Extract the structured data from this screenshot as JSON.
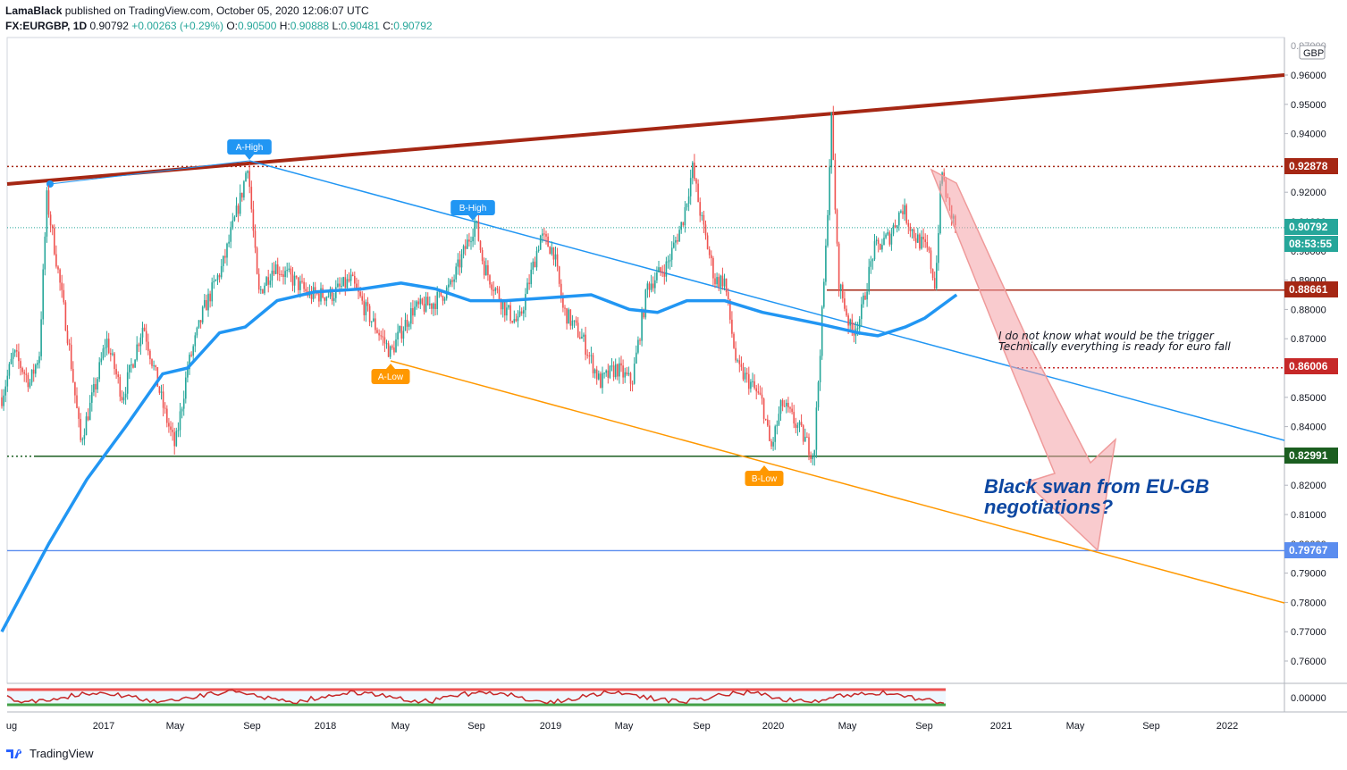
{
  "header": {
    "author": "LamaBlack",
    "published": "published on TradingView.com, October 05, 2020 12:06:07 UTC",
    "symbol": "FX:EURGBP, 1D",
    "last": "0.90792",
    "change": "+0.00263 (+0.29%)",
    "o_label": "O:",
    "o": "0.90500",
    "h_label": "H:",
    "h": "0.90888",
    "l_label": "L:",
    "l": "0.90481",
    "c_label": "C:",
    "c": "0.90792"
  },
  "brand": "TradingView",
  "colors": {
    "up": "#26a69a",
    "down": "#ef5350",
    "ma": "#2196f3",
    "resistance": "#a52714",
    "falling_line": "#2196f3",
    "lower_line": "#ff9800",
    "support": "#1b5e20",
    "arrow": "#f4a0a6",
    "annotation_blue": "#0d47a1"
  },
  "chart_data": {
    "type": "candlestick",
    "symbol": "FX:EURGBP",
    "interval": "1D",
    "currency_badge": "GBP",
    "y_ticks": [
      "0.96000",
      "0.95000",
      "0.94000",
      "0.93000",
      "0.92000",
      "0.91000",
      "0.90000",
      "0.89000",
      "0.88000",
      "0.87000",
      "0.86000",
      "0.85000",
      "0.84000",
      "0.83000",
      "0.82000",
      "0.81000",
      "0.80000",
      "0.79000",
      "0.78000",
      "0.77000",
      "0.76000"
    ],
    "y_range": [
      0.75,
      0.972
    ],
    "x_labels": [
      "ug",
      "2017",
      "May",
      "Sep",
      "2018",
      "May",
      "Sep",
      "2019",
      "May",
      "Sep",
      "2020",
      "May",
      "Sep",
      "2021",
      "May",
      "Sep",
      "2022"
    ],
    "x_range": [
      "2016-08-01",
      "2022-04-15"
    ],
    "price_path": [
      [
        "2016-08-01",
        0.85
      ],
      [
        "2016-08-20",
        0.865
      ],
      [
        "2016-09-15",
        0.855
      ],
      [
        "2016-09-30",
        0.865
      ],
      [
        "2016-10-12",
        0.918
      ],
      [
        "2016-10-25",
        0.9
      ],
      [
        "2016-11-15",
        0.87
      ],
      [
        "2016-12-05",
        0.835
      ],
      [
        "2016-12-30",
        0.855
      ],
      [
        "2017-01-15",
        0.87
      ],
      [
        "2017-02-10",
        0.85
      ],
      [
        "2017-03-15",
        0.875
      ],
      [
        "2017-04-18",
        0.845
      ],
      [
        "2017-05-05",
        0.833
      ],
      [
        "2017-05-25",
        0.86
      ],
      [
        "2017-06-20",
        0.88
      ],
      [
        "2017-07-20",
        0.895
      ],
      [
        "2017-08-20",
        0.92
      ],
      [
        "2017-08-29",
        0.93
      ],
      [
        "2017-09-15",
        0.885
      ],
      [
        "2017-10-10",
        0.895
      ],
      [
        "2017-11-10",
        0.89
      ],
      [
        "2017-12-05",
        0.885
      ],
      [
        "2018-01-10",
        0.885
      ],
      [
        "2018-02-10",
        0.89
      ],
      [
        "2018-03-05",
        0.88
      ],
      [
        "2018-04-15",
        0.865
      ],
      [
        "2018-04-25",
        0.87
      ],
      [
        "2018-05-20",
        0.88
      ],
      [
        "2018-06-20",
        0.882
      ],
      [
        "2018-07-20",
        0.888
      ],
      [
        "2018-08-28",
        0.91
      ],
      [
        "2018-09-10",
        0.895
      ],
      [
        "2018-10-15",
        0.88
      ],
      [
        "2018-11-05",
        0.875
      ],
      [
        "2018-12-10",
        0.905
      ],
      [
        "2018-12-31",
        0.9
      ],
      [
        "2019-01-15",
        0.88
      ],
      [
        "2019-02-15",
        0.87
      ],
      [
        "2019-03-15",
        0.855
      ],
      [
        "2019-04-10",
        0.86
      ],
      [
        "2019-05-05",
        0.855
      ],
      [
        "2019-05-30",
        0.888
      ],
      [
        "2019-06-30",
        0.895
      ],
      [
        "2019-07-25",
        0.91
      ],
      [
        "2019-08-10",
        0.928
      ],
      [
        "2019-08-25",
        0.91
      ],
      [
        "2019-09-15",
        0.89
      ],
      [
        "2019-09-30",
        0.89
      ],
      [
        "2019-10-20",
        0.86
      ],
      [
        "2019-11-10",
        0.855
      ],
      [
        "2019-11-30",
        0.848
      ],
      [
        "2019-12-13",
        0.832
      ],
      [
        "2019-12-31",
        0.848
      ],
      [
        "2020-01-25",
        0.84
      ],
      [
        "2020-02-20",
        0.83
      ],
      [
        "2020-03-10",
        0.9
      ],
      [
        "2020-03-19",
        0.945
      ],
      [
        "2020-03-30",
        0.89
      ],
      [
        "2020-04-20",
        0.872
      ],
      [
        "2020-05-05",
        0.878
      ],
      [
        "2020-05-25",
        0.9
      ],
      [
        "2020-06-20",
        0.905
      ],
      [
        "2020-07-10",
        0.915
      ],
      [
        "2020-07-30",
        0.905
      ],
      [
        "2020-08-20",
        0.9
      ],
      [
        "2020-09-01",
        0.888
      ],
      [
        "2020-09-11",
        0.928
      ],
      [
        "2020-09-22",
        0.915
      ],
      [
        "2020-10-05",
        0.908
      ]
    ],
    "moving_average": [
      [
        "2016-08-01",
        0.77
      ],
      [
        "2016-10-15",
        0.8
      ],
      [
        "2016-12-15",
        0.822
      ],
      [
        "2017-02-15",
        0.84
      ],
      [
        "2017-04-15",
        0.858
      ],
      [
        "2017-05-25",
        0.86
      ],
      [
        "2017-07-15",
        0.872
      ],
      [
        "2017-08-25",
        0.874
      ],
      [
        "2017-10-15",
        0.883
      ],
      [
        "2017-12-15",
        0.886
      ],
      [
        "2018-03-01",
        0.887
      ],
      [
        "2018-05-01",
        0.889
      ],
      [
        "2018-06-25",
        0.887
      ],
      [
        "2018-08-20",
        0.883
      ],
      [
        "2018-10-15",
        0.883
      ],
      [
        "2018-12-25",
        0.884
      ],
      [
        "2019-03-01",
        0.885
      ],
      [
        "2019-05-01",
        0.88
      ],
      [
        "2019-06-15",
        0.879
      ],
      [
        "2019-08-01",
        0.883
      ],
      [
        "2019-09-30",
        0.883
      ],
      [
        "2019-11-30",
        0.879
      ],
      [
        "2020-01-15",
        0.877
      ],
      [
        "2020-03-01",
        0.875
      ],
      [
        "2020-05-01",
        0.872
      ],
      [
        "2020-06-01",
        0.871
      ],
      [
        "2020-07-15",
        0.874
      ],
      [
        "2020-08-15",
        0.877
      ],
      [
        "2020-10-05",
        0.885
      ]
    ],
    "price_badges": [
      {
        "value": "0.92878",
        "color": "#a52714"
      },
      {
        "value": "0.90792",
        "color": "#26a69a"
      },
      {
        "value": "08:53:55",
        "color": "#26a69a"
      },
      {
        "value": "0.88661",
        "color": "#a52714"
      },
      {
        "value": "0.86006",
        "color": "#c62828"
      },
      {
        "value": "0.82991",
        "color": "#1b5e20"
      },
      {
        "value": "0.79767",
        "color": "#5b8def"
      }
    ],
    "labels": {
      "a_high": "A-High",
      "b_high": "B-High",
      "a_low": "A-Low",
      "b_low": "B-Low"
    },
    "annotation_small": [
      "I do not know what would be the trigger",
      "Technically everything is ready for euro fall"
    ],
    "annotation_big": [
      "Black swan from EU-GB",
      "negotiations?"
    ],
    "oscillator_tick": "0.00000"
  }
}
